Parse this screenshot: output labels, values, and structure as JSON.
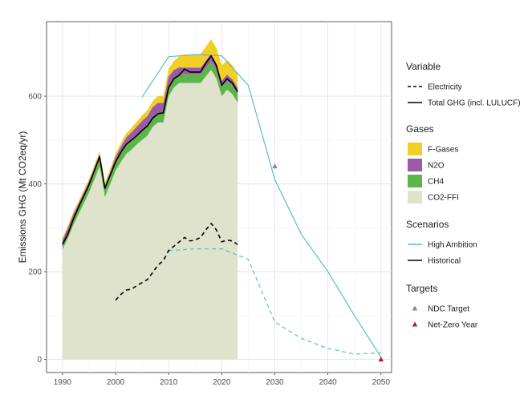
{
  "chart_data": {
    "type": "area",
    "title": "",
    "xlabel": "",
    "ylabel": "Emissions GHG (Mt CO2eq/yr)",
    "xlim": [
      1987,
      2052
    ],
    "ylim": [
      -30,
      770
    ],
    "x_ticks": [
      1990,
      2000,
      2010,
      2020,
      2030,
      2040,
      2050
    ],
    "y_ticks": [
      0,
      200,
      400,
      600
    ],
    "x_tick_labels": [
      "1990",
      "2000",
      "2010",
      "2020",
      "2030",
      "2040",
      "2050"
    ],
    "y_tick_labels": [
      "0",
      "200",
      "400",
      "600"
    ],
    "grid": true,
    "years": [
      1990,
      1991,
      1992,
      1993,
      1994,
      1995,
      1996,
      1997,
      1998,
      1999,
      2000,
      2001,
      2002,
      2003,
      2004,
      2005,
      2006,
      2007,
      2008,
      2009,
      2010,
      2011,
      2012,
      2013,
      2014,
      2015,
      2016,
      2017,
      2018,
      2019,
      2020,
      2021,
      2022,
      2023
    ],
    "gases": [
      {
        "name": "CO2-FFI",
        "color": "#dfe3cc",
        "values": [
          250,
          275,
          305,
          330,
          355,
          380,
          410,
          440,
          370,
          400,
          430,
          450,
          468,
          478,
          490,
          500,
          510,
          530,
          540,
          540,
          600,
          620,
          630,
          630,
          630,
          630,
          630,
          645,
          660,
          640,
          600,
          615,
          605,
          585
        ]
      },
      {
        "name": "CH4",
        "color": "#5cb548",
        "values": [
          10,
          12,
          13,
          13,
          13,
          14,
          15,
          16,
          15,
          16,
          18,
          19,
          20,
          21,
          21,
          22,
          22,
          20,
          20,
          20,
          20,
          20,
          20,
          20,
          20,
          20,
          20,
          20,
          20,
          20,
          20,
          20,
          20,
          20
        ]
      },
      {
        "name": "N2O",
        "color": "#9c5ba8",
        "values": [
          12,
          12,
          12,
          12,
          12,
          12,
          12,
          12,
          12,
          12,
          14,
          16,
          18,
          19,
          20,
          22,
          23,
          25,
          25,
          25,
          25,
          20,
          16,
          15,
          15,
          15,
          15,
          16,
          16,
          15,
          15,
          14,
          14,
          14
        ]
      },
      {
        "name": "F-Gases",
        "color": "#f2cf25",
        "values": [
          5,
          5,
          5,
          5,
          5,
          5,
          5,
          6,
          6,
          6,
          7,
          8,
          9,
          10,
          11,
          12,
          13,
          14,
          15,
          16,
          17,
          20,
          25,
          30,
          30,
          31,
          31,
          32,
          34,
          35,
          35,
          33,
          32,
          30
        ]
      }
    ],
    "series": [
      {
        "name": "Total GHG (incl. LULUCF)",
        "group": "Historical",
        "variable": "Total GHG (incl. LULUCF)",
        "color": "#000000",
        "dash": "solid",
        "x": [
          1990,
          1991,
          1992,
          1993,
          1994,
          1995,
          1996,
          1997,
          1998,
          1999,
          2000,
          2001,
          2002,
          2003,
          2004,
          2005,
          2006,
          2007,
          2008,
          2009,
          2010,
          2011,
          2012,
          2013,
          2014,
          2015,
          2016,
          2017,
          2018,
          2019,
          2020,
          2021,
          2022,
          2023
        ],
        "values": [
          262,
          285,
          318,
          346,
          372,
          398,
          430,
          462,
          390,
          420,
          450,
          472,
          490,
          500,
          510,
          522,
          532,
          550,
          560,
          562,
          620,
          640,
          648,
          662,
          655,
          655,
          655,
          675,
          692,
          670,
          625,
          640,
          630,
          610
        ]
      },
      {
        "name": "Electricity",
        "group": "Historical",
        "variable": "Electricity",
        "color": "#000000",
        "dash": "dashed",
        "x": [
          2000,
          2001,
          2002,
          2003,
          2004,
          2005,
          2006,
          2007,
          2008,
          2009,
          2010,
          2011,
          2012,
          2013,
          2014,
          2015,
          2016,
          2017,
          2018,
          2019,
          2020,
          2021,
          2022,
          2023
        ],
        "values": [
          135,
          148,
          158,
          160,
          168,
          175,
          182,
          198,
          215,
          225,
          248,
          258,
          268,
          278,
          270,
          272,
          278,
          295,
          310,
          295,
          268,
          272,
          270,
          262
        ]
      },
      {
        "name": "Total GHG (incl. LULUCF)",
        "group": "High Ambition",
        "variable": "Total GHG (incl. LULUCF)",
        "color": "#5bbcc6",
        "dash": "solid",
        "x": [
          2005,
          2010,
          2015,
          2020,
          2025,
          2030,
          2035,
          2040,
          2045,
          2050
        ],
        "values": [
          598,
          690,
          695,
          692,
          625,
          410,
          285,
          200,
          100,
          5
        ]
      },
      {
        "name": "Electricity",
        "group": "High Ambition",
        "variable": "Electricity",
        "color": "#5bbcc6",
        "dash": "dashed",
        "x": [
          2010,
          2015,
          2020,
          2025,
          2030,
          2035,
          2040,
          2045,
          2050
        ],
        "values": [
          248,
          252,
          252,
          228,
          85,
          48,
          25,
          12,
          15
        ]
      }
    ],
    "targets": [
      {
        "name": "NDC Target",
        "year": 2030,
        "value": 440,
        "color": "#7b7fb4"
      },
      {
        "name": "Net-Zero Year",
        "year": 2050,
        "value": 0,
        "color": "#b2182b"
      }
    ],
    "legend": {
      "position": "right",
      "groups": [
        {
          "title": "Variable",
          "items": [
            {
              "label": "Electricity",
              "kind": "line",
              "dash": "dashed",
              "color": "#000000"
            },
            {
              "label": "Total GHG (incl. LULUCF)",
              "kind": "line",
              "dash": "solid",
              "color": "#000000"
            }
          ]
        },
        {
          "title": "Gases",
          "items": [
            {
              "label": "F-Gases",
              "kind": "fill",
              "color": "#f2cf25"
            },
            {
              "label": "N2O",
              "kind": "fill",
              "color": "#9c5ba8"
            },
            {
              "label": "CH4",
              "kind": "fill",
              "color": "#5cb548"
            },
            {
              "label": "CO2-FFI",
              "kind": "fill",
              "color": "#dfe3cc"
            }
          ]
        },
        {
          "title": "Scenarios",
          "items": [
            {
              "label": "High Ambition",
              "kind": "line",
              "dash": "solid",
              "color": "#5bbcc6"
            },
            {
              "label": "Historical",
              "kind": "line",
              "dash": "solid",
              "color": "#000000"
            }
          ]
        },
        {
          "title": "Targets",
          "items": [
            {
              "label": "NDC Target",
              "kind": "triangle",
              "color": "#7b7fb4"
            },
            {
              "label": "Net-Zero Year",
              "kind": "triangle",
              "color": "#b2182b"
            }
          ]
        }
      ]
    }
  }
}
